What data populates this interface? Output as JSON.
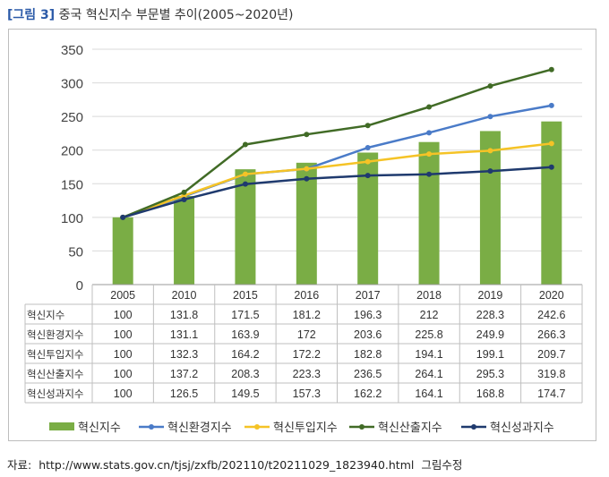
{
  "header": {
    "tag": "[그림 3]",
    "title": "중국 혁신지수 부문별 추이(2005~2020년)"
  },
  "source": {
    "label": "자료:",
    "url": "http://www.stats.gov.cn/tjsj/zxfb/202110/t20211029_1823940.html",
    "note": "그림수정"
  },
  "chart_data": {
    "type": "bar",
    "categories": [
      "2005",
      "2010",
      "2015",
      "2016",
      "2017",
      "2018",
      "2019",
      "2020"
    ],
    "ylim": [
      0,
      350
    ],
    "yticks": [
      0,
      50,
      100,
      150,
      200,
      250,
      300,
      350
    ],
    "grid": true,
    "legend_position": "bottom",
    "series": [
      {
        "name": "혁신지수",
        "kind": "bar",
        "color": "#7aad45",
        "values": [
          "100",
          "131.8",
          "171.5",
          "181.2",
          "196.3",
          "212",
          "228.3",
          "242.6"
        ]
      },
      {
        "name": "혁신환경지수",
        "kind": "line",
        "color": "#4a7bc8",
        "values": [
          "100",
          "131.1",
          "163.9",
          "172",
          "203.6",
          "225.8",
          "249.9",
          "266.3"
        ]
      },
      {
        "name": "혁신투입지수",
        "kind": "line",
        "color": "#f5c326",
        "values": [
          "100",
          "132.3",
          "164.2",
          "172.2",
          "182.8",
          "194.1",
          "199.1",
          "209.7"
        ]
      },
      {
        "name": "혁신산출지수",
        "kind": "line",
        "color": "#416b26",
        "values": [
          "100",
          "137.2",
          "208.3",
          "223.3",
          "236.5",
          "264.1",
          "295.3",
          "319.8"
        ]
      },
      {
        "name": "혁신성과지수",
        "kind": "line",
        "color": "#1f3a6e",
        "values": [
          "100",
          "126.5",
          "149.5",
          "157.3",
          "162.2",
          "164.1",
          "168.8",
          "174.7"
        ]
      }
    ]
  }
}
